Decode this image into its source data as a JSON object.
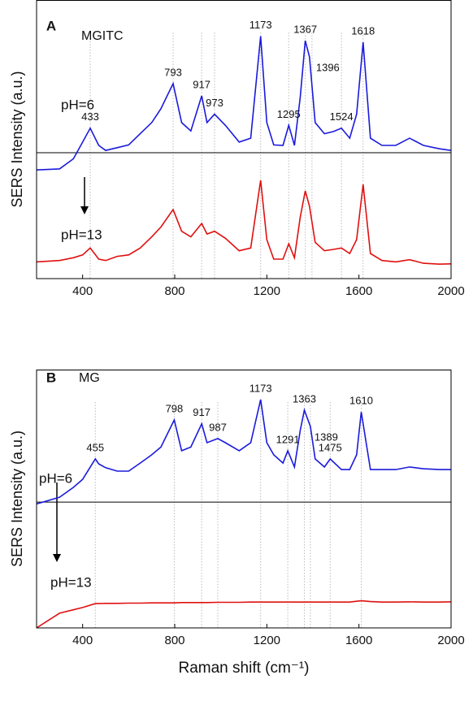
{
  "chart_data": [
    {
      "type": "line",
      "panel_label": "A",
      "title": "MGITC",
      "ylabel": "SERS Intensity (a.u.)",
      "xlim": [
        200,
        2000
      ],
      "xticks": [
        400,
        800,
        1200,
        1600,
        2000
      ],
      "ylim": [
        0,
        100
      ],
      "reference_line": 45.2,
      "x": [
        200,
        300,
        360,
        400,
        433,
        470,
        500,
        550,
        600,
        650,
        700,
        740,
        793,
        830,
        870,
        917,
        940,
        973,
        1020,
        1080,
        1130,
        1173,
        1200,
        1230,
        1270,
        1295,
        1320,
        1345,
        1367,
        1385,
        1410,
        1450,
        1490,
        1524,
        1560,
        1590,
        1618,
        1650,
        1700,
        1760,
        1820,
        1880,
        1950,
        2000
      ],
      "series": [
        {
          "name": "pH=6",
          "color": "#1a1adc",
          "values": [
            39,
            39.4,
            43,
            49,
            54,
            47.8,
            46,
            47,
            48,
            52,
            56,
            61,
            70,
            56,
            53,
            65.6,
            56,
            59,
            55,
            49,
            50.4,
            87,
            56,
            48,
            47.8,
            55,
            47.8,
            65,
            85.4,
            79.6,
            56,
            52,
            52.8,
            54,
            50.4,
            59,
            84.8,
            50.4,
            47.8,
            47.8,
            50.4,
            47.8,
            46.6,
            46
          ]
        },
        {
          "name": "pH=13",
          "color": "#e01010",
          "values": [
            6,
            6.5,
            7.5,
            8.5,
            11,
            7,
            6.5,
            8,
            8.5,
            11,
            15,
            18.5,
            24.8,
            17,
            15,
            19.8,
            16,
            17,
            14.5,
            10,
            11,
            35.3,
            14,
            7,
            7,
            12.5,
            7.5,
            22,
            31.5,
            26,
            13,
            10,
            10.5,
            11,
            9,
            14,
            33.8,
            9,
            6.5,
            6,
            6.8,
            5.5,
            5.2,
            5.3
          ]
        }
      ],
      "peak_labels": [
        433,
        793,
        917,
        973,
        1173,
        1295,
        1367,
        1396,
        1524,
        1618
      ]
    },
    {
      "type": "line",
      "panel_label": "B",
      "title": "MG",
      "ylabel": "SERS Intensity (a.u.)",
      "xlabel": "Raman shift (cm⁻¹)",
      "xlim": [
        200,
        2000
      ],
      "xticks": [
        400,
        800,
        1200,
        1600,
        2000
      ],
      "ylim": [
        0,
        100
      ],
      "reference_line": 48.7,
      "x": [
        200,
        300,
        360,
        400,
        455,
        470,
        500,
        550,
        600,
        650,
        700,
        740,
        798,
        830,
        870,
        917,
        940,
        987,
        1020,
        1080,
        1130,
        1173,
        1200,
        1230,
        1270,
        1291,
        1320,
        1345,
        1363,
        1389,
        1410,
        1450,
        1475,
        1524,
        1560,
        1590,
        1610,
        1650,
        1700,
        1760,
        1820,
        1880,
        1950,
        2000
      ],
      "series": [
        {
          "name": "pH=6",
          "color": "#1a1adc",
          "values": [
            48,
            50.6,
            54.4,
            57.5,
            65.4,
            63.5,
            62,
            60.7,
            60.7,
            63.8,
            67,
            70,
            80.5,
            68.6,
            70,
            79,
            71.7,
            73.3,
            71.7,
            68.6,
            71.7,
            88.4,
            71.7,
            67,
            63.8,
            68.6,
            62.3,
            76.4,
            84.3,
            78,
            65.4,
            62.3,
            65.4,
            61.3,
            61.3,
            67,
            83.6,
            61.3,
            61.3,
            61.3,
            62.3,
            61.6,
            61.3,
            61.3
          ]
        },
        {
          "name": "pH=13",
          "color": "#e01010",
          "values": [
            0,
            5.7,
            7,
            7.9,
            9.4,
            9.4,
            9.5,
            9.5,
            9.6,
            9.6,
            9.7,
            9.7,
            9.7,
            9.8,
            9.8,
            9.8,
            9.8,
            9.9,
            9.9,
            9.9,
            10,
            10,
            10,
            10,
            10,
            10,
            10,
            10,
            10,
            10,
            10,
            10,
            10,
            10,
            10,
            10.3,
            10.5,
            10.2,
            10,
            10,
            10.1,
            10,
            10,
            10.1
          ]
        }
      ],
      "peak_labels": [
        455,
        798,
        917,
        987,
        1173,
        1291,
        1363,
        1389,
        1475,
        1610
      ]
    }
  ]
}
